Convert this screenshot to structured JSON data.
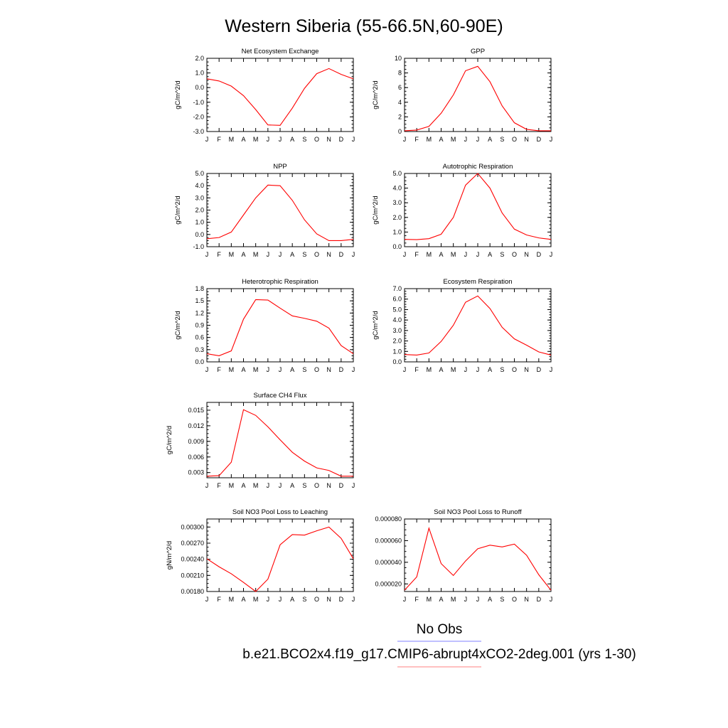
{
  "figure": {
    "title": "Western Siberia (55-66.5N,60-90E)",
    "legend": {
      "obs_label": "No Obs",
      "obs_color": "#8080ff",
      "model_label": "b.e21.BCO2x4.f19_g17.CMIP6-abrupt4xCO2-2deg.001 (yrs 1-30)",
      "model_color": "#ff8080"
    }
  },
  "chart_data": [
    {
      "type": "line",
      "title": "Net Ecosystem Exchange",
      "ylabel": "gC/m^2/d",
      "categories": [
        "J",
        "F",
        "M",
        "A",
        "M",
        "J",
        "J",
        "A",
        "S",
        "O",
        "N",
        "D",
        "J"
      ],
      "ylim": [
        -3.0,
        2.0
      ],
      "yticks": [
        -3.0,
        -2.0,
        -1.0,
        0.0,
        1.0,
        2.0
      ],
      "ytick_labels": [
        "-3.0",
        "-2.0",
        "-1.0",
        "0.0",
        "1.0",
        "2.0"
      ],
      "series": [
        {
          "color": "#ff0000",
          "values": [
            0.6,
            0.45,
            0.1,
            -0.55,
            -1.5,
            -2.55,
            -2.58,
            -1.4,
            -0.05,
            0.95,
            1.3,
            0.9,
            0.6
          ]
        }
      ]
    },
    {
      "type": "line",
      "title": "GPP",
      "ylabel": "gC/m^2/d",
      "categories": [
        "J",
        "F",
        "M",
        "A",
        "M",
        "J",
        "J",
        "A",
        "S",
        "O",
        "N",
        "D",
        "J"
      ],
      "ylim": [
        0,
        10
      ],
      "yticks": [
        0,
        2,
        4,
        6,
        8,
        10
      ],
      "ytick_labels": [
        "0",
        "2",
        "4",
        "6",
        "8",
        "10"
      ],
      "series": [
        {
          "color": "#ff0000",
          "values": [
            0.1,
            0.2,
            0.7,
            2.5,
            5.0,
            8.3,
            8.9,
            6.8,
            3.5,
            1.2,
            0.3,
            0.1,
            0.1
          ]
        }
      ]
    },
    {
      "type": "line",
      "title": "NPP",
      "ylabel": "gC/m^2/d",
      "categories": [
        "J",
        "F",
        "M",
        "A",
        "M",
        "J",
        "J",
        "A",
        "S",
        "O",
        "N",
        "D",
        "J"
      ],
      "ylim": [
        -1.0,
        5.0
      ],
      "yticks": [
        -1.0,
        0.0,
        1.0,
        2.0,
        3.0,
        4.0,
        5.0
      ],
      "ytick_labels": [
        "-1.0",
        "0.0",
        "1.0",
        "2.0",
        "3.0",
        "4.0",
        "5.0"
      ],
      "series": [
        {
          "color": "#ff0000",
          "values": [
            -0.35,
            -0.25,
            0.2,
            1.6,
            3.0,
            4.05,
            4.0,
            2.8,
            1.2,
            0.05,
            -0.5,
            -0.5,
            -0.4
          ]
        }
      ]
    },
    {
      "type": "line",
      "title": "Autotrophic Respiration",
      "ylabel": "gC/m^2/d",
      "categories": [
        "J",
        "F",
        "M",
        "A",
        "M",
        "J",
        "J",
        "A",
        "S",
        "O",
        "N",
        "D",
        "J"
      ],
      "ylim": [
        0.0,
        5.0
      ],
      "yticks": [
        0.0,
        1.0,
        2.0,
        3.0,
        4.0,
        5.0
      ],
      "ytick_labels": [
        "0.0",
        "1.0",
        "2.0",
        "3.0",
        "4.0",
        "5.0"
      ],
      "series": [
        {
          "color": "#ff0000",
          "values": [
            0.5,
            0.48,
            0.55,
            0.85,
            2.0,
            4.2,
            5.0,
            4.0,
            2.3,
            1.2,
            0.8,
            0.6,
            0.5
          ]
        }
      ]
    },
    {
      "type": "line",
      "title": "Heterotrophic Respiration",
      "ylabel": "gC/m^2/d",
      "categories": [
        "J",
        "F",
        "M",
        "A",
        "M",
        "J",
        "J",
        "A",
        "S",
        "O",
        "N",
        "D",
        "J"
      ],
      "ylim": [
        0.0,
        1.8
      ],
      "yticks": [
        0.0,
        0.3,
        0.6,
        0.9,
        1.2,
        1.5,
        1.8
      ],
      "ytick_labels": [
        "0.0",
        "0.3",
        "0.6",
        "0.9",
        "1.2",
        "1.5",
        "1.8"
      ],
      "series": [
        {
          "color": "#ff0000",
          "values": [
            0.2,
            0.15,
            0.27,
            1.05,
            1.53,
            1.52,
            1.32,
            1.13,
            1.07,
            1.0,
            0.83,
            0.4,
            0.2
          ]
        }
      ]
    },
    {
      "type": "line",
      "title": "Ecosystem Respiration",
      "ylabel": "gC/m^2/d",
      "categories": [
        "J",
        "F",
        "M",
        "A",
        "M",
        "J",
        "J",
        "A",
        "S",
        "O",
        "N",
        "D",
        "J"
      ],
      "ylim": [
        0.0,
        7.0
      ],
      "yticks": [
        0.0,
        1.0,
        2.0,
        3.0,
        4.0,
        5.0,
        6.0,
        7.0
      ],
      "ytick_labels": [
        "0.0",
        "1.0",
        "2.0",
        "3.0",
        "4.0",
        "5.0",
        "6.0",
        "7.0"
      ],
      "series": [
        {
          "color": "#ff0000",
          "values": [
            0.7,
            0.65,
            0.85,
            1.95,
            3.5,
            5.7,
            6.3,
            5.1,
            3.3,
            2.2,
            1.6,
            0.95,
            0.65
          ]
        }
      ]
    },
    {
      "type": "line",
      "title": "Surface CH4 Flux",
      "ylabel": "gC/m^2/d",
      "categories": [
        "J",
        "F",
        "M",
        "A",
        "M",
        "J",
        "J",
        "A",
        "S",
        "O",
        "N",
        "D",
        "J"
      ],
      "ylim": [
        0.002,
        0.0165
      ],
      "yticks": [
        0.003,
        0.006,
        0.009,
        0.012,
        0.015
      ],
      "ytick_labels": [
        "0.003",
        "0.006",
        "0.009",
        "0.012",
        "0.015"
      ],
      "series": [
        {
          "color": "#ff0000",
          "values": [
            0.0023,
            0.0024,
            0.005,
            0.0151,
            0.014,
            0.0118,
            0.0093,
            0.0069,
            0.0052,
            0.0039,
            0.0034,
            0.0023,
            0.0023
          ]
        }
      ]
    },
    {
      "type": "line",
      "title": "Soil NO3 Pool Loss to Leaching",
      "ylabel": "gN/m^2/d",
      "categories": [
        "J",
        "F",
        "M",
        "A",
        "M",
        "J",
        "J",
        "A",
        "S",
        "O",
        "N",
        "D",
        "J"
      ],
      "ylim": [
        0.0018,
        0.00315
      ],
      "yticks": [
        0.0018,
        0.0021,
        0.0024,
        0.0027,
        0.003
      ],
      "ytick_labels": [
        "0.00180",
        "0.00210",
        "0.00240",
        "0.00270",
        "0.00300"
      ],
      "series": [
        {
          "color": "#ff0000",
          "values": [
            0.00241,
            0.00226,
            0.00213,
            0.00197,
            0.0018,
            0.00203,
            0.00267,
            0.00286,
            0.00285,
            0.00293,
            0.003,
            0.00279,
            0.00241
          ]
        }
      ]
    },
    {
      "type": "line",
      "title": "Soil NO3 Pool Loss to Runoff",
      "ylabel": "",
      "categories": [
        "J",
        "F",
        "M",
        "A",
        "M",
        "J",
        "J",
        "A",
        "S",
        "O",
        "N",
        "D",
        "J"
      ],
      "ylim": [
        1.3e-05,
        8e-05
      ],
      "yticks": [
        2e-05,
        4e-05,
        6e-05,
        8e-05
      ],
      "ytick_labels": [
        "0.000020",
        "0.000040",
        "0.000060",
        "0.000080"
      ],
      "series": [
        {
          "color": "#ff0000",
          "values": [
            1.42e-05,
            2.65e-05,
            7.15e-05,
            3.88e-05,
            2.78e-05,
            4.12e-05,
            5.25e-05,
            5.58e-05,
            5.42e-05,
            5.68e-05,
            4.65e-05,
            2.85e-05,
            1.42e-05
          ]
        }
      ]
    }
  ]
}
